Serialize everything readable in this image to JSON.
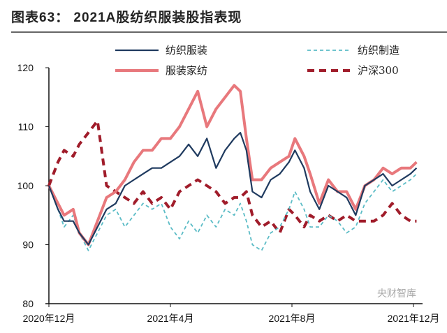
{
  "chart_data": {
    "type": "line",
    "title": "图表63：  2021A股纺织服装股指表现",
    "xlabel": "",
    "ylabel": "",
    "xlim": [
      0,
      12.3
    ],
    "ylim": [
      80,
      120
    ],
    "yticks": [
      80,
      90,
      100,
      110,
      120
    ],
    "xticks": [
      {
        "x": 0,
        "label": "2020年12月"
      },
      {
        "x": 4,
        "label": "2021年4月"
      },
      {
        "x": 8,
        "label": "2021年8月"
      },
      {
        "x": 12,
        "label": "2021年12月"
      }
    ],
    "legend_position": "top",
    "series": [
      {
        "name": "纺织服装",
        "color": "#1f3a5f",
        "style": "solid",
        "x": [
          0,
          0.3,
          0.5,
          0.8,
          1.0,
          1.3,
          1.6,
          1.9,
          2.2,
          2.5,
          2.8,
          3.1,
          3.4,
          3.7,
          4.0,
          4.3,
          4.6,
          4.9,
          5.2,
          5.5,
          5.8,
          6.1,
          6.3,
          6.5,
          6.7,
          7.0,
          7.3,
          7.6,
          7.9,
          8.1,
          8.4,
          8.6,
          8.9,
          9.2,
          9.5,
          9.8,
          10.1,
          10.4,
          10.7,
          11.0,
          11.3,
          11.6,
          11.9,
          12.1
        ],
        "y": [
          100,
          96,
          94,
          94,
          92,
          90,
          93,
          96,
          97,
          100,
          101,
          102,
          103,
          103,
          104,
          105,
          107,
          105,
          108,
          103,
          106,
          108,
          109,
          106,
          99,
          98,
          101,
          102,
          104,
          106,
          103,
          99,
          96,
          100,
          99,
          98,
          95,
          100,
          101,
          102,
          100,
          101,
          102,
          103
        ]
      },
      {
        "name": "服装家纺",
        "color": "#e8787c",
        "style": "solid",
        "x": [
          0,
          0.3,
          0.5,
          0.8,
          1.0,
          1.3,
          1.6,
          1.9,
          2.2,
          2.5,
          2.8,
          3.1,
          3.4,
          3.7,
          4.0,
          4.3,
          4.6,
          4.9,
          5.2,
          5.5,
          5.8,
          6.1,
          6.3,
          6.5,
          6.7,
          7.0,
          7.3,
          7.6,
          7.9,
          8.1,
          8.4,
          8.6,
          8.9,
          9.2,
          9.5,
          9.8,
          10.1,
          10.4,
          10.7,
          11.0,
          11.3,
          11.6,
          11.9,
          12.1
        ],
        "y": [
          100,
          97,
          95,
          96,
          92,
          90,
          94,
          98,
          99,
          101,
          104,
          106,
          106,
          108,
          108,
          110,
          113,
          116,
          110,
          113,
          115,
          117,
          116,
          108,
          101,
          101,
          103,
          104,
          105,
          108,
          105,
          102,
          97,
          101,
          99,
          99,
          96,
          100,
          101,
          103,
          102,
          103,
          103,
          104
        ]
      },
      {
        "name": "纺织制造",
        "color": "#5bbcc6",
        "style": "dashed",
        "x": [
          0,
          0.3,
          0.5,
          0.8,
          1.0,
          1.3,
          1.6,
          1.9,
          2.2,
          2.5,
          2.8,
          3.1,
          3.4,
          3.7,
          4.0,
          4.3,
          4.6,
          4.9,
          5.2,
          5.5,
          5.8,
          6.1,
          6.3,
          6.5,
          6.7,
          7.0,
          7.3,
          7.6,
          7.9,
          8.1,
          8.4,
          8.6,
          8.9,
          9.2,
          9.5,
          9.8,
          10.1,
          10.4,
          10.7,
          11.0,
          11.3,
          11.6,
          11.9,
          12.1
        ],
        "y": [
          100,
          96,
          93,
          95,
          92,
          89,
          92,
          95,
          96,
          93,
          95,
          97,
          96,
          97,
          93,
          91,
          94,
          92,
          95,
          93,
          96,
          95,
          97,
          94,
          90,
          89,
          92,
          93,
          96,
          99,
          96,
          93,
          93,
          95,
          94,
          92,
          93,
          97,
          99,
          101,
          99,
          100,
          101,
          102
        ]
      },
      {
        "name": "沪深300",
        "color": "#a01c2a",
        "style": "dashed",
        "x": [
          0,
          0.3,
          0.5,
          0.8,
          1.0,
          1.3,
          1.6,
          1.9,
          2.2,
          2.5,
          2.8,
          3.1,
          3.4,
          3.7,
          4.0,
          4.3,
          4.6,
          4.9,
          5.2,
          5.5,
          5.8,
          6.1,
          6.3,
          6.5,
          6.7,
          7.0,
          7.3,
          7.6,
          7.9,
          8.1,
          8.4,
          8.6,
          8.9,
          9.2,
          9.5,
          9.8,
          10.1,
          10.4,
          10.7,
          11.0,
          11.3,
          11.6,
          11.9,
          12.1
        ],
        "y": [
          100,
          104,
          106,
          105,
          107,
          109,
          111,
          100,
          99,
          98,
          97,
          99,
          97,
          98,
          96,
          99,
          100,
          101,
          100,
          99,
          97,
          98,
          98,
          99,
          95,
          93,
          94,
          92,
          96,
          95,
          93,
          95,
          94,
          95,
          94,
          95,
          94,
          94,
          94,
          95,
          97,
          95,
          94,
          94
        ]
      }
    ]
  },
  "watermark": "央财智库"
}
